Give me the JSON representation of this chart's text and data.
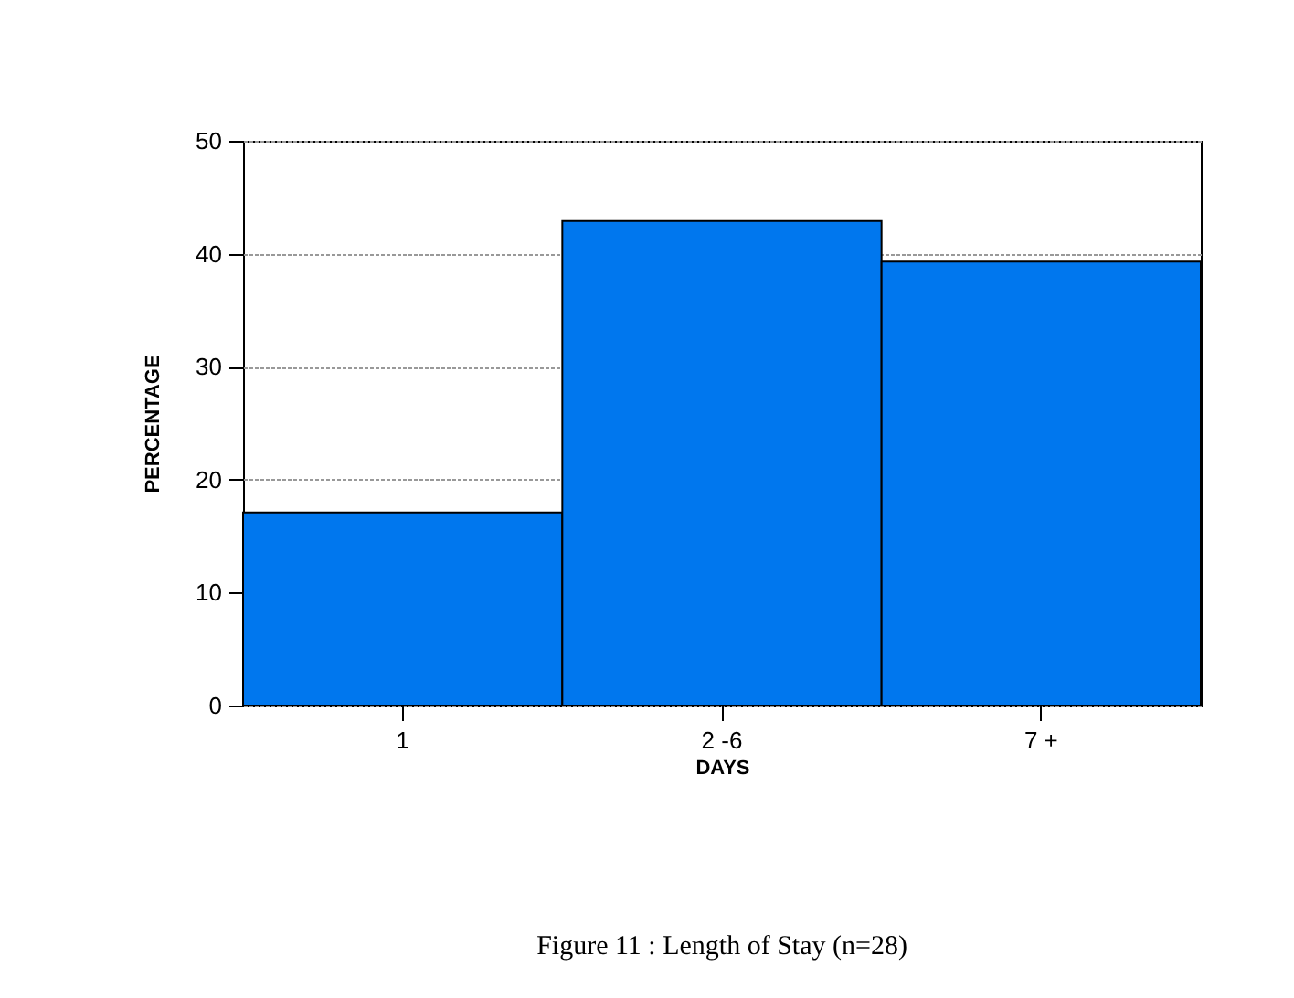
{
  "chart_data": {
    "type": "bar",
    "title": "Figure 11 : Length of Stay (n=28)",
    "xlabel": "DAYS",
    "ylabel": "PERCENTAGE",
    "categories": [
      "1",
      "2 -6",
      "7 +"
    ],
    "series": [
      {
        "color": "#0077ee",
        "values": [
          17.1,
          42.9,
          39.3
        ]
      }
    ],
    "ylim": [
      0,
      50
    ],
    "yticks": [
      0,
      10,
      20,
      30,
      40,
      50
    ],
    "grid": "y"
  }
}
